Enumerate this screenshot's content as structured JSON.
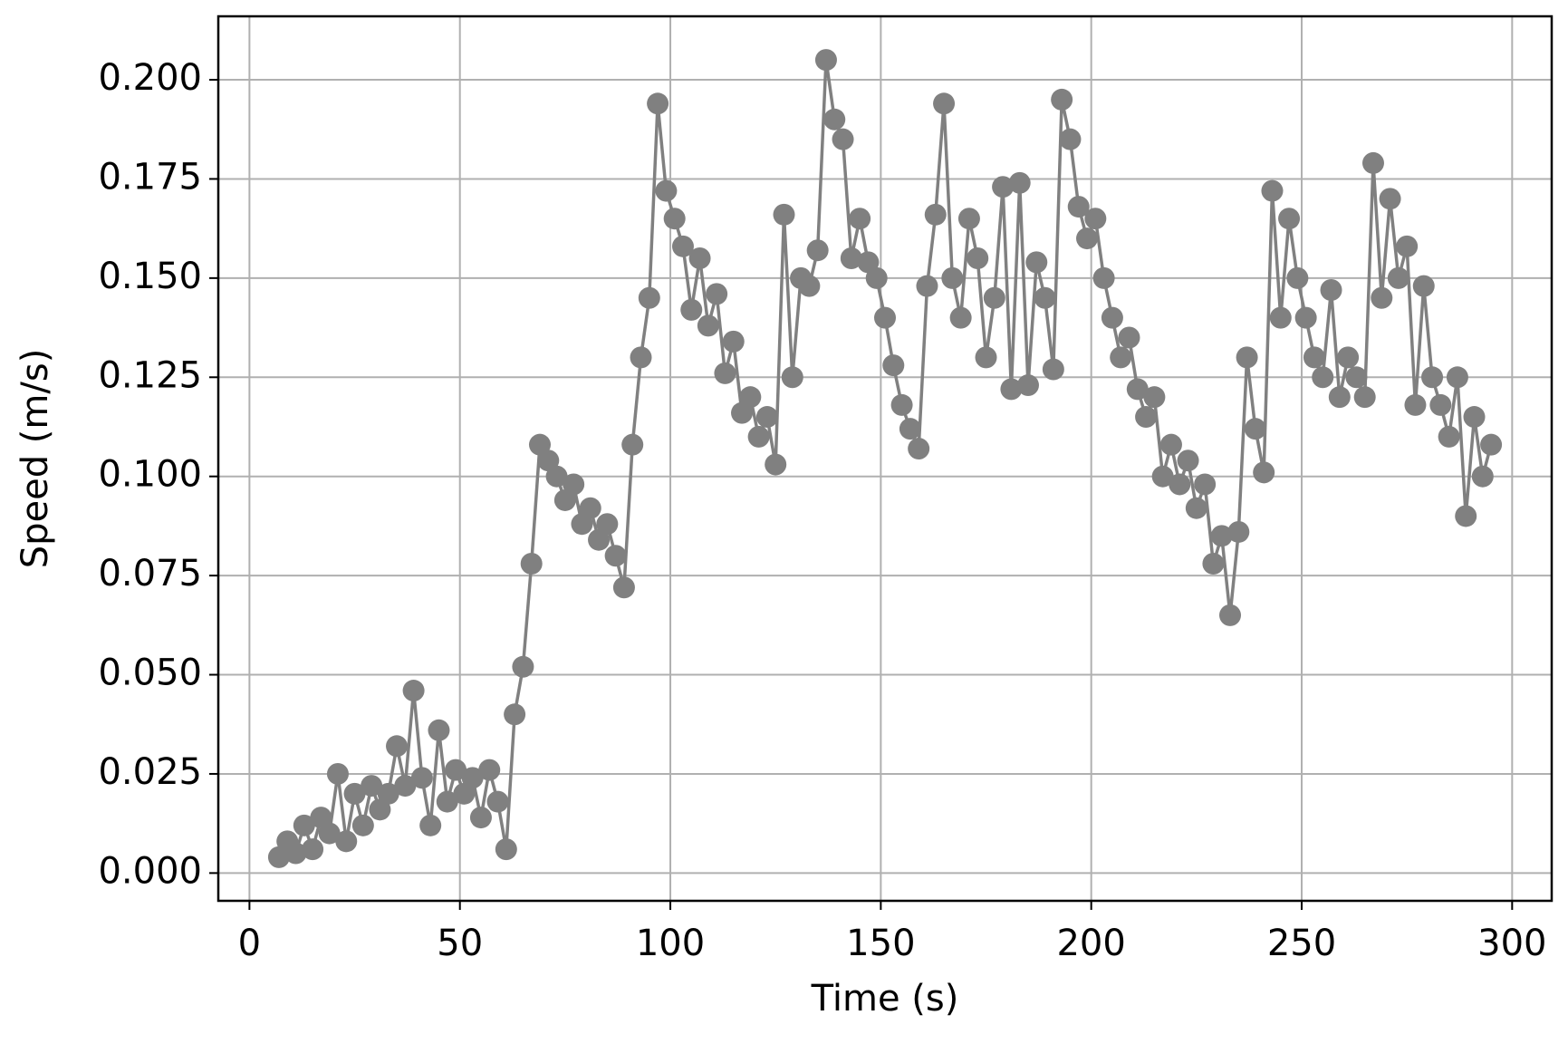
{
  "chart_data": {
    "type": "line",
    "x_label": "Time (s)",
    "y_label": "Speed (m/s)",
    "x": [
      7,
      9,
      11,
      13,
      15,
      17,
      19,
      21,
      23,
      25,
      27,
      29,
      31,
      33,
      35,
      37,
      39,
      41,
      43,
      45,
      47,
      49,
      51,
      53,
      55,
      57,
      59,
      61,
      63,
      65,
      67,
      69,
      71,
      73,
      75,
      77,
      79,
      81,
      83,
      85,
      87,
      89,
      91,
      93,
      95,
      97,
      99,
      101,
      103,
      105,
      107,
      109,
      111,
      113,
      115,
      117,
      119,
      121,
      123,
      125,
      127,
      129,
      131,
      133,
      135,
      137,
      139,
      141,
      143,
      145,
      147,
      149,
      151,
      153,
      155,
      157,
      159,
      161,
      163,
      165,
      167,
      169,
      171,
      173,
      175,
      177,
      179,
      181,
      183,
      185,
      187,
      189,
      191,
      193,
      195,
      197,
      199,
      201,
      203,
      205,
      207,
      209,
      211,
      213,
      215,
      217,
      219,
      221,
      223,
      225,
      227,
      229,
      231,
      233,
      235,
      237,
      239,
      241,
      243,
      245,
      247,
      249,
      251,
      253,
      255,
      257,
      259,
      261,
      263,
      265,
      267,
      269,
      271,
      273,
      275,
      277,
      279,
      281,
      283,
      285,
      287,
      289,
      291,
      293,
      295
    ],
    "series": [
      {
        "color": "#808080",
        "values": [
          0.004,
          0.008,
          0.005,
          0.012,
          0.006,
          0.014,
          0.01,
          0.025,
          0.008,
          0.02,
          0.012,
          0.022,
          0.016,
          0.02,
          0.032,
          0.022,
          0.046,
          0.024,
          0.012,
          0.036,
          0.018,
          0.026,
          0.02,
          0.024,
          0.014,
          0.026,
          0.018,
          0.006,
          0.04,
          0.052,
          0.078,
          0.108,
          0.104,
          0.1,
          0.094,
          0.098,
          0.088,
          0.092,
          0.084,
          0.088,
          0.08,
          0.072,
          0.108,
          0.13,
          0.145,
          0.194,
          0.172,
          0.165,
          0.158,
          0.142,
          0.155,
          0.138,
          0.146,
          0.126,
          0.134,
          0.116,
          0.12,
          0.11,
          0.115,
          0.103,
          0.166,
          0.125,
          0.15,
          0.148,
          0.157,
          0.205,
          0.19,
          0.185,
          0.155,
          0.165,
          0.154,
          0.15,
          0.14,
          0.128,
          0.118,
          0.112,
          0.107,
          0.148,
          0.166,
          0.194,
          0.15,
          0.14,
          0.165,
          0.155,
          0.13,
          0.145,
          0.173,
          0.122,
          0.174,
          0.123,
          0.154,
          0.145,
          0.127,
          0.195,
          0.185,
          0.168,
          0.16,
          0.165,
          0.15,
          0.14,
          0.13,
          0.135,
          0.122,
          0.115,
          0.12,
          0.1,
          0.108,
          0.098,
          0.104,
          0.092,
          0.098,
          0.078,
          0.085,
          0.065,
          0.086,
          0.13,
          0.112,
          0.101,
          0.172,
          0.14,
          0.165,
          0.15,
          0.14,
          0.13,
          0.125,
          0.147,
          0.12,
          0.13,
          0.125,
          0.12,
          0.179,
          0.145,
          0.17,
          0.15,
          0.158,
          0.118,
          0.148,
          0.125,
          0.118,
          0.11,
          0.125,
          0.09,
          0.115,
          0.1,
          0.108
        ]
      }
    ],
    "xlim": [
      -7.4,
      309.4
    ],
    "xticks": [
      0,
      50,
      100,
      150,
      200,
      250,
      300
    ],
    "ylim": [
      -0.007,
      0.216
    ],
    "yticks": [
      {
        "value": 0,
        "label": "0.000"
      },
      {
        "value": 0.025,
        "label": "0.025"
      },
      {
        "value": 0.05,
        "label": "0.050"
      },
      {
        "value": 0.075,
        "label": "0.075"
      },
      {
        "value": 0.1,
        "label": "0.100"
      },
      {
        "value": 0.125,
        "label": "0.125"
      },
      {
        "value": 0.15,
        "label": "0.150"
      },
      {
        "value": 0.175,
        "label": "0.175"
      },
      {
        "value": 0.2,
        "label": "0.200"
      }
    ],
    "grid": true,
    "markers": true
  }
}
